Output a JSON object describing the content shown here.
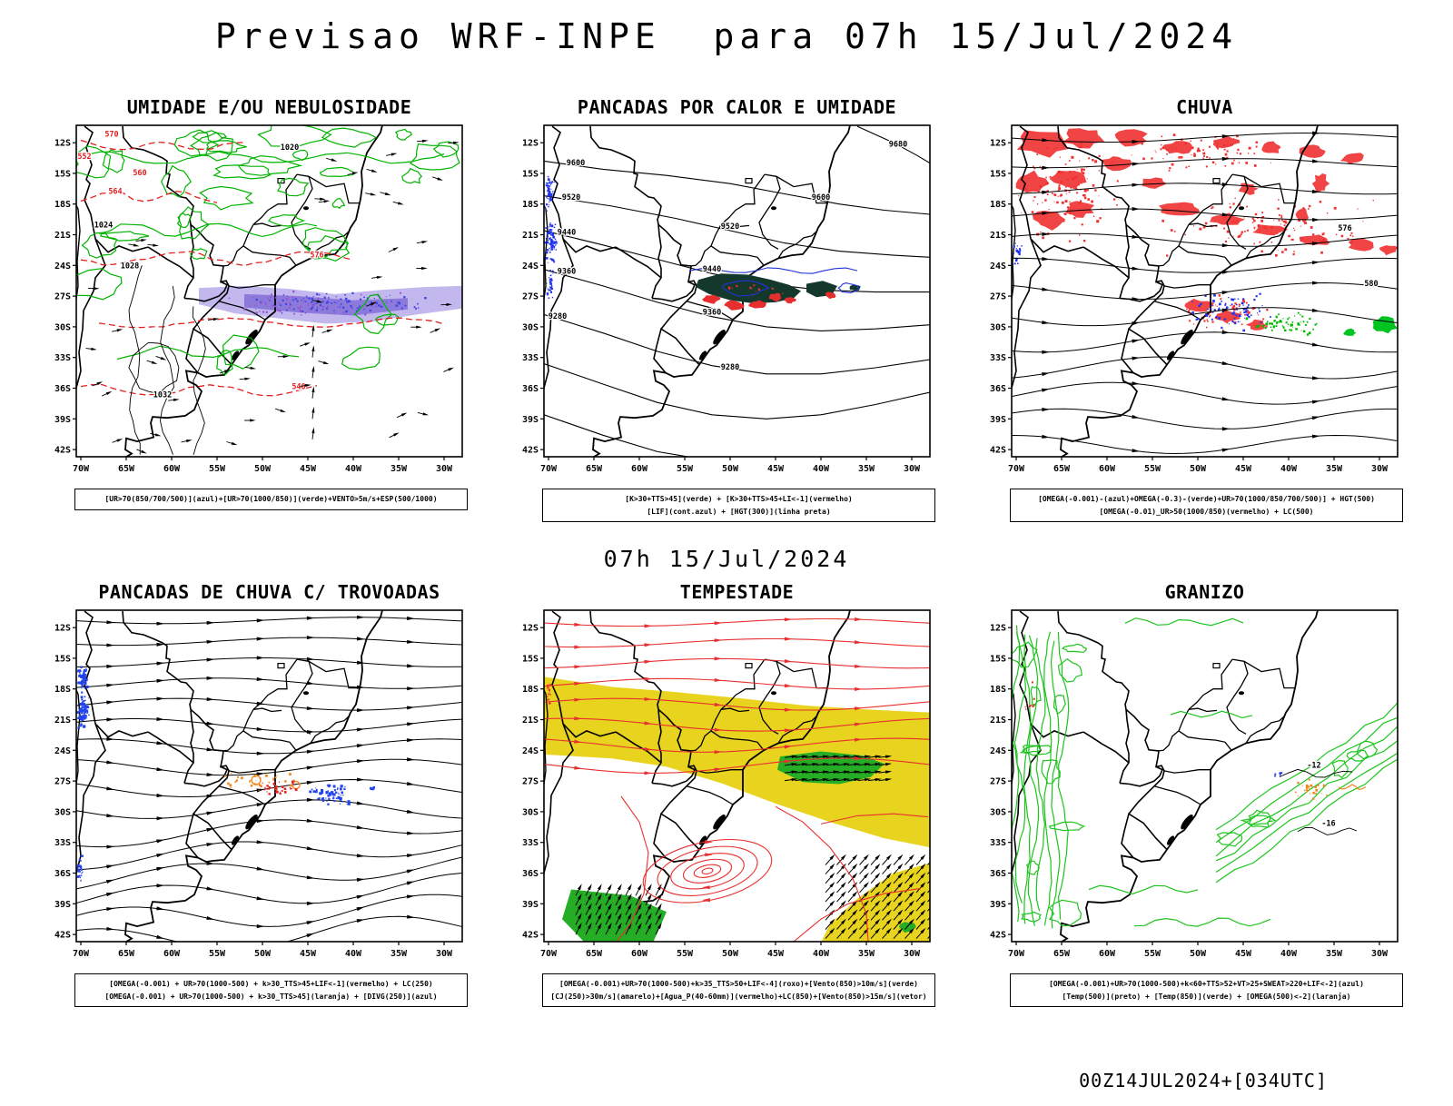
{
  "title": "Previsao WRF-INPE  para 07h 15/Jul/2024",
  "valid_label": "07h 15/Jul/2024",
  "run_label": "00Z14JUL2024+[034UTC]",
  "map_axes": {
    "lat_labels": [
      "12S",
      "15S",
      "18S",
      "21S",
      "24S",
      "27S",
      "30S",
      "33S",
      "36S",
      "39S",
      "42S"
    ],
    "lon_labels": [
      "70W",
      "65W",
      "60W",
      "55W",
      "50W",
      "45W",
      "40W",
      "35W",
      "30W"
    ]
  },
  "legend_colors": {
    "verde": "#00b400",
    "vermelho": "#e62e2e",
    "azul": "#2233ee",
    "roxo": "#7e6ad6",
    "amarelo": "#e8d41e",
    "laranja": "#ef8820",
    "preto": "#000000"
  },
  "panels": [
    {
      "id": "umidade",
      "title": "UMIDADE E/OU NEBULOSIDADE",
      "caption": [
        "[UR>70(850/700/500)](azul)+[UR>70(1000/850)](verde)+VENTO>5m/s+ESP(500/1000)"
      ],
      "contour_labels": {
        "red": [
          "540",
          "552",
          "560",
          "564",
          "570",
          "576"
        ],
        "black": [
          "1020",
          "1024",
          "1028",
          "1032"
        ]
      }
    },
    {
      "id": "calor",
      "title": "PANCADAS POR CALOR E UMIDADE",
      "caption": [
        "[K>30+TTS>45](verde) + [K>30+TTS>45+LI<-1](vermelho)",
        "[LIF](cont.azul) + [HGT(300)](linha preta)"
      ],
      "contour_labels": {
        "black": [
          "9680",
          "9600",
          "9520",
          "9440",
          "9360",
          "9280"
        ]
      }
    },
    {
      "id": "chuva",
      "title": "CHUVA",
      "caption": [
        "[OMEGA(-0.001)-(azul)+OMEGA(-0.3)-(verde)+UR>70(1000/850/700/500)] + HGT(500)",
        "[OMEGA(-0.01)_UR>50(1000/850)(vermelho) + LC(500)"
      ],
      "contour_labels": {
        "black": [
          "576",
          "580"
        ]
      }
    },
    {
      "id": "trovoadas",
      "title": "PANCADAS DE CHUVA C/ TROVOADAS",
      "caption": [
        "[OMEGA(-0.001) + UR>70(1000-500) + k>30_TTS>45+LIF<-1](vermelho) + LC(250)",
        "[OMEGA(-0.001) + UR>70(1000-500) + k>30_TTS>45](laranja) + [DIVG(250)](azul)"
      ]
    },
    {
      "id": "tempestade",
      "title": "TEMPESTADE",
      "caption": [
        "[OMEGA(-0.001)+UR>70(1000-500)+k>35_TTS>50+LIF<-4](roxo)+[Vento(850)>10m/s](verde)",
        "[CJ(250)>30m/s](amarelo)+[Agua_P(40-60mm)](vermelho)+LC(850)+[Vento(850)>15m/s](vetor)"
      ]
    },
    {
      "id": "granizo",
      "title": "GRANIZO",
      "caption": [
        "[OMEGA(-0.001)+UR>70(1000-500)+k<60+TTS>52+VT>25+SWEAT>220+LIF<-2](azul)",
        "[Temp(500)](preto) + [Temp(850)](verde) + [OMEGA(500)<-2](laranja)"
      ],
      "contour_labels": {
        "black": [
          "-12",
          "-16"
        ]
      }
    }
  ]
}
